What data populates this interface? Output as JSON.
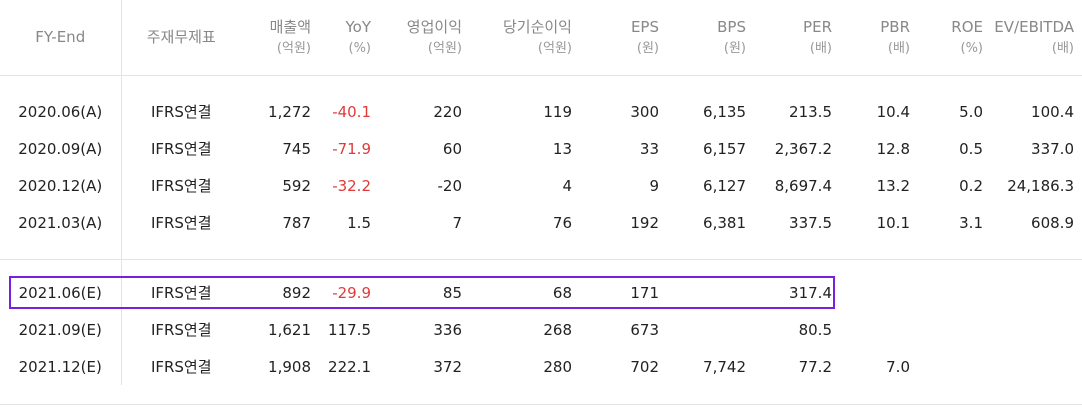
{
  "headers": [
    {
      "label": "FY-End",
      "unit": ""
    },
    {
      "label": "주재무제표",
      "unit": ""
    },
    {
      "label": "매출액",
      "unit": "(억원)"
    },
    {
      "label": "YoY",
      "unit": "(%)"
    },
    {
      "label": "영업이익",
      "unit": "(억원)"
    },
    {
      "label": "당기순이익",
      "unit": "(억원)"
    },
    {
      "label": "EPS",
      "unit": "(원)"
    },
    {
      "label": "BPS",
      "unit": "(원)"
    },
    {
      "label": "PER",
      "unit": "(배)"
    },
    {
      "label": "PBR",
      "unit": "(배)"
    },
    {
      "label": "ROE",
      "unit": "(%)"
    },
    {
      "label": "EV/EBITDA",
      "unit": "(배)"
    }
  ],
  "actual_rows": [
    {
      "fy": "2020.06(A)",
      "fs": "IFRS연결",
      "sales": "1,272",
      "yoy": "-40.1",
      "op": "220",
      "net": "119",
      "eps": "300",
      "bps": "6,135",
      "per": "213.5",
      "pbr": "10.4",
      "roe": "5.0",
      "ev": "100.4"
    },
    {
      "fy": "2020.09(A)",
      "fs": "IFRS연결",
      "sales": "745",
      "yoy": "-71.9",
      "op": "60",
      "net": "13",
      "eps": "33",
      "bps": "6,157",
      "per": "2,367.2",
      "pbr": "12.8",
      "roe": "0.5",
      "ev": "337.0"
    },
    {
      "fy": "2020.12(A)",
      "fs": "IFRS연결",
      "sales": "592",
      "yoy": "-32.2",
      "op": "-20",
      "net": "4",
      "eps": "9",
      "bps": "6,127",
      "per": "8,697.4",
      "pbr": "13.2",
      "roe": "0.2",
      "ev": "24,186.3"
    },
    {
      "fy": "2021.03(A)",
      "fs": "IFRS연결",
      "sales": "787",
      "yoy": "1.5",
      "op": "7",
      "net": "76",
      "eps": "192",
      "bps": "6,381",
      "per": "337.5",
      "pbr": "10.1",
      "roe": "3.1",
      "ev": "608.9"
    }
  ],
  "estimate_rows": [
    {
      "fy": "2021.06(E)",
      "fs": "IFRS연결",
      "sales": "892",
      "yoy": "-29.9",
      "op": "85",
      "net": "68",
      "eps": "171",
      "bps": "",
      "per": "317.4",
      "pbr": "",
      "roe": "",
      "ev": ""
    },
    {
      "fy": "2021.09(E)",
      "fs": "IFRS연결",
      "sales": "1,621",
      "yoy": "117.5",
      "op": "336",
      "net": "268",
      "eps": "673",
      "bps": "",
      "per": "80.5",
      "pbr": "",
      "roe": "",
      "ev": ""
    },
    {
      "fy": "2021.12(E)",
      "fs": "IFRS연결",
      "sales": "1,908",
      "yoy": "222.1",
      "op": "372",
      "net": "280",
      "eps": "702",
      "bps": "7,742",
      "per": "77.2",
      "pbr": "7.0",
      "roe": "",
      "ev": ""
    }
  ],
  "colors": {
    "negative": "#e03a3a",
    "highlight": "#7a1fdb",
    "border": "#e3e3e3"
  }
}
